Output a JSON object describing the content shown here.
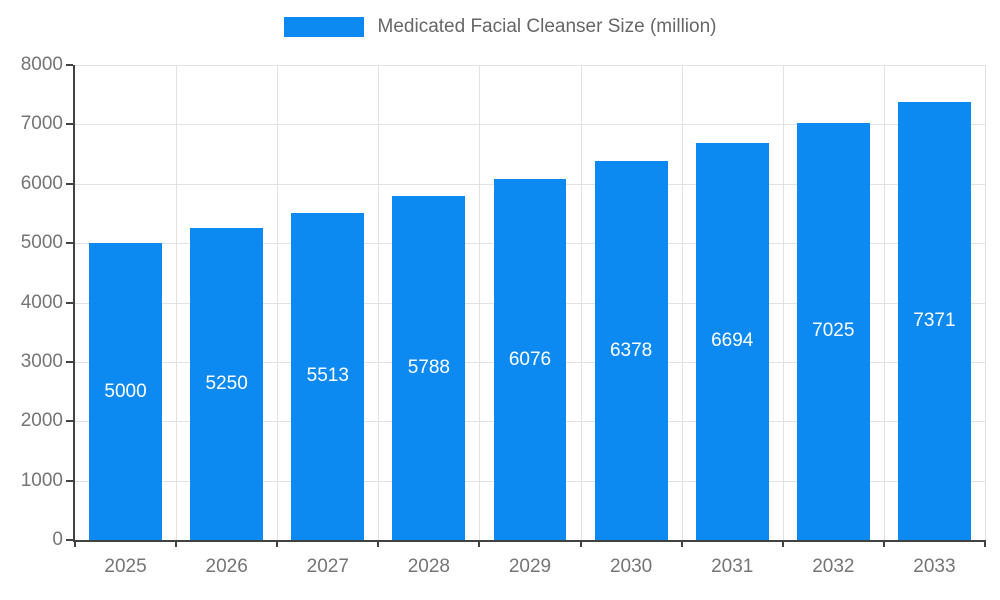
{
  "legend": {
    "label": "Medicated Facial Cleanser Size (million)"
  },
  "chart_data": {
    "type": "bar",
    "title": "Medicated Facial Cleanser Size (million)",
    "categories": [
      "2025",
      "2026",
      "2027",
      "2028",
      "2029",
      "2030",
      "2031",
      "2032",
      "2033"
    ],
    "values": [
      5000,
      5250,
      5513,
      5788,
      6076,
      6378,
      6694,
      7025,
      7371
    ],
    "xlabel": "",
    "ylabel": "",
    "ylim": [
      0,
      8000
    ],
    "ytick_step": 1000,
    "grid": true,
    "legend_position": "top",
    "bar_color": "#0d8af2",
    "bar_label_color": "#ffffff",
    "axis_text_color": "#757575",
    "title_color": "#666666"
  }
}
